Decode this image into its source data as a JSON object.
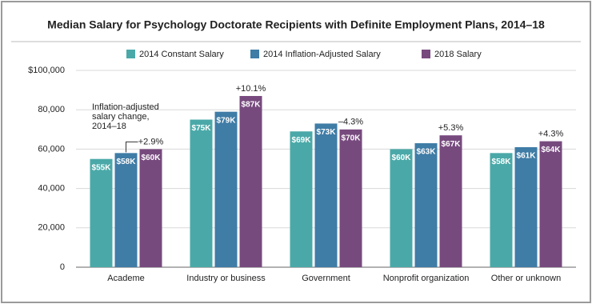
{
  "chart_data": {
    "type": "bar",
    "title": "Median Salary for Psychology Doctorate Recipients with Definite Employment Plans, 2014–18",
    "categories": [
      "Academe",
      "Industry or business",
      "Government",
      "Nonprofit organization",
      "Other or unknown"
    ],
    "series": [
      {
        "name": "2014 Constant Salary",
        "color": "#4aa9a8",
        "values": [
          55000,
          75000,
          69000,
          60000,
          58000
        ],
        "value_labels": [
          "$55K",
          "$75K",
          "$69K",
          "$60K",
          "$58K"
        ]
      },
      {
        "name": "2014 Inflation-Adjusted Salary",
        "color": "#3f7ca6",
        "values": [
          58000,
          79000,
          73000,
          63000,
          61000
        ],
        "value_labels": [
          "$58K",
          "$79K",
          "$73K",
          "$63K",
          "$61K"
        ]
      },
      {
        "name": "2018 Salary",
        "color": "#774a7e",
        "values": [
          60000,
          87000,
          70000,
          67000,
          64000
        ],
        "value_labels": [
          "$60K",
          "$87K",
          "$70K",
          "$67K",
          "$64K"
        ]
      }
    ],
    "change_labels": [
      "+2.9%",
      "+10.1%",
      "–4.3%",
      "+5.3%",
      "+4.3%"
    ],
    "annotation": [
      "Inflation-adjusted",
      "salary change,",
      "2014–18"
    ],
    "ylim": [
      0,
      100000
    ],
    "yticks": [
      0,
      {
        "value": 20000,
        "label": "20,000"
      },
      {
        "value": 40000,
        "label": "40,000"
      },
      {
        "value": 60000,
        "label": "60,000"
      },
      {
        "value": 80000,
        "label": "80,000"
      },
      {
        "value": 100000,
        "label": "$100,000"
      }
    ],
    "grid": true
  }
}
